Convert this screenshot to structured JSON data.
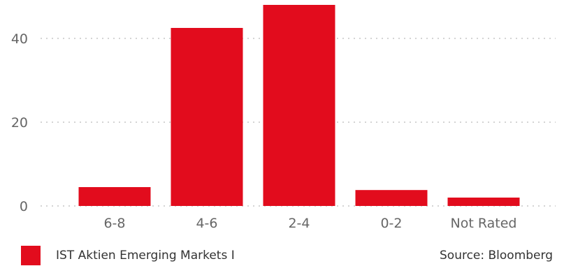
{
  "chart_data": {
    "type": "bar",
    "categories": [
      "6-8",
      "4-6",
      "2-4",
      "0-2",
      "Not Rated"
    ],
    "series": [
      {
        "name": "IST Aktien Emerging Markets I",
        "values": [
          4.5,
          42.5,
          48,
          3.8,
          2
        ]
      }
    ],
    "ylim": [
      0,
      48
    ],
    "yticks": [
      0,
      20,
      40
    ],
    "grid": true,
    "legend_position": "bottom-left",
    "bar_color": "#E20C1D",
    "grid_color": "#BBBBBB",
    "tick_color": "#666666"
  },
  "source": "Source: Bloomberg"
}
